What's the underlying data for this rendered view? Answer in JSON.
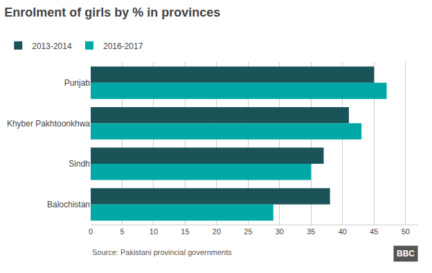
{
  "chart_data": {
    "type": "bar",
    "orientation": "horizontal",
    "title": "Enrolment of girls by % in provinces",
    "categories": [
      "Punjab",
      "Khyber Pakhtoonkhwa",
      "Sindh",
      "Balochistan"
    ],
    "series": [
      {
        "name": "2013-2014",
        "color": "#1a5459",
        "values": [
          45,
          41,
          37,
          38
        ]
      },
      {
        "name": "2016-2017",
        "color": "#00a9a5",
        "values": [
          47,
          43,
          35,
          29
        ]
      }
    ],
    "xlim": [
      0,
      52
    ],
    "xticks": [
      0,
      5,
      10,
      15,
      20,
      25,
      30,
      35,
      40,
      45,
      50
    ],
    "grid": true,
    "legend": "top left",
    "annotations": [
      "Source: Pakistani provincial governments",
      "BBC"
    ]
  }
}
